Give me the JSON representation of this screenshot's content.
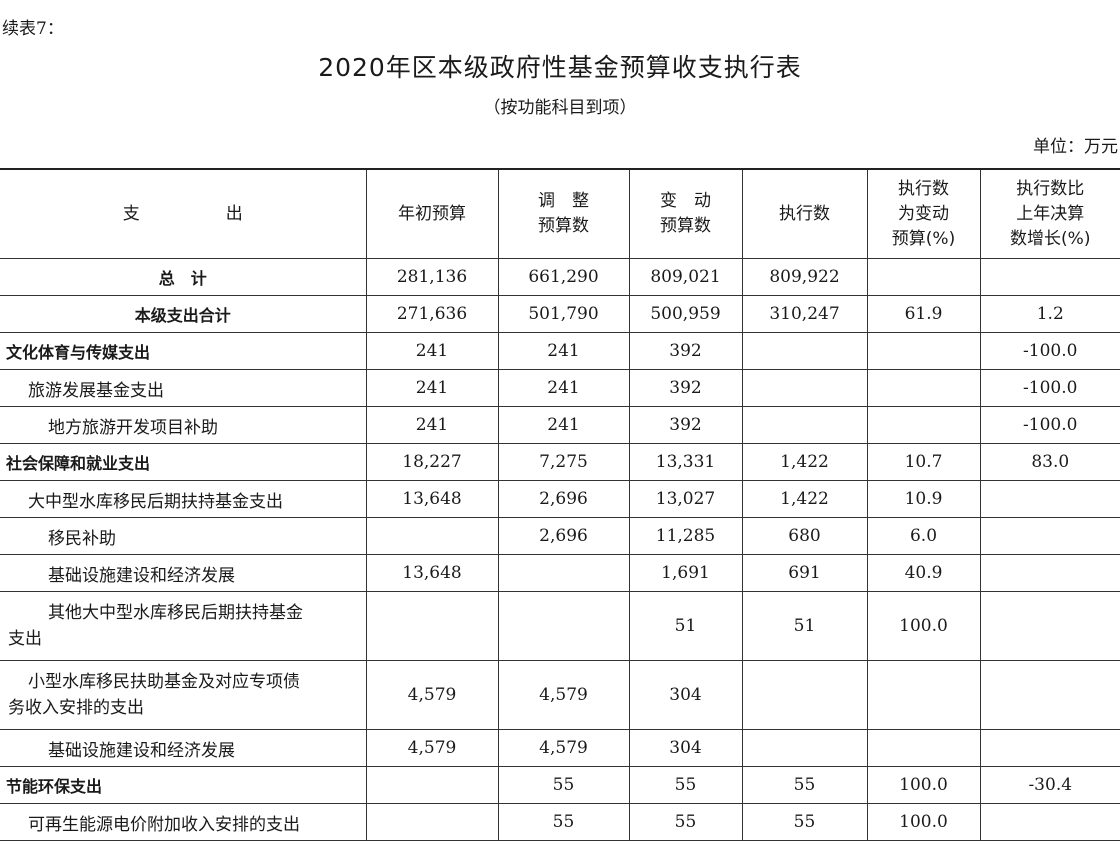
{
  "continued_label": "续表7：",
  "title": "2020年区本级政府性基金预算收支执行表",
  "subtitle": "（按功能科目到项）",
  "unit": "单位：万元",
  "headers": {
    "col0": "支　　出",
    "col1": "年初预算",
    "col2a": "调　整",
    "col2b": "预算数",
    "col3a": "变　动",
    "col3b": "预算数",
    "col4": "执行数",
    "col5a": "执行数",
    "col5b": "为变动",
    "col5c": "预算(%)",
    "col6a": "执行数比",
    "col6b": "上年决算",
    "col6c": "数增长(%)"
  },
  "rows": [
    {
      "name": "总　计",
      "initial": "281,136",
      "adjusted": "661,290",
      "changed": "809,021",
      "executed": "809,922",
      "pct_changed": "",
      "growth": ""
    },
    {
      "name": "本级支出合计",
      "initial": "271,636",
      "adjusted": "501,790",
      "changed": "500,959",
      "executed": "310,247",
      "pct_changed": "61.9",
      "growth": "1.2"
    },
    {
      "name": "文化体育与传媒支出",
      "initial": "241",
      "adjusted": "241",
      "changed": "392",
      "executed": "",
      "pct_changed": "",
      "growth": "-100.0"
    },
    {
      "name": "旅游发展基金支出",
      "initial": "241",
      "adjusted": "241",
      "changed": "392",
      "executed": "",
      "pct_changed": "",
      "growth": "-100.0"
    },
    {
      "name": "地方旅游开发项目补助",
      "initial": "241",
      "adjusted": "241",
      "changed": "392",
      "executed": "",
      "pct_changed": "",
      "growth": "-100.0"
    },
    {
      "name": "社会保障和就业支出",
      "initial": "18,227",
      "adjusted": "7,275",
      "changed": "13,331",
      "executed": "1,422",
      "pct_changed": "10.7",
      "growth": "83.0"
    },
    {
      "name": "大中型水库移民后期扶持基金支出",
      "initial": "13,648",
      "adjusted": "2,696",
      "changed": "13,027",
      "executed": "1,422",
      "pct_changed": "10.9",
      "growth": ""
    },
    {
      "name": "移民补助",
      "initial": "",
      "adjusted": "2,696",
      "changed": "11,285",
      "executed": "680",
      "pct_changed": "6.0",
      "growth": ""
    },
    {
      "name": "基础设施建设和经济发展",
      "initial": "13,648",
      "adjusted": "",
      "changed": "1,691",
      "executed": "691",
      "pct_changed": "40.9",
      "growth": ""
    },
    {
      "name_line1": "其他大中型水库移民后期扶持基金",
      "name_line2": "支出",
      "initial": "",
      "adjusted": "",
      "changed": "51",
      "executed": "51",
      "pct_changed": "100.0",
      "growth": ""
    },
    {
      "name_line1": "小型水库移民扶助基金及对应专项债",
      "name_line2": "务收入安排的支出",
      "initial": "4,579",
      "adjusted": "4,579",
      "changed": "304",
      "executed": "",
      "pct_changed": "",
      "growth": ""
    },
    {
      "name": "基础设施建设和经济发展",
      "initial": "4,579",
      "adjusted": "4,579",
      "changed": "304",
      "executed": "",
      "pct_changed": "",
      "growth": ""
    },
    {
      "name": "节能环保支出",
      "initial": "",
      "adjusted": "55",
      "changed": "55",
      "executed": "55",
      "pct_changed": "100.0",
      "growth": "-30.4"
    },
    {
      "name": "可再生能源电价附加收入安排的支出",
      "initial": "",
      "adjusted": "55",
      "changed": "55",
      "executed": "55",
      "pct_changed": "100.0",
      "growth": ""
    }
  ]
}
